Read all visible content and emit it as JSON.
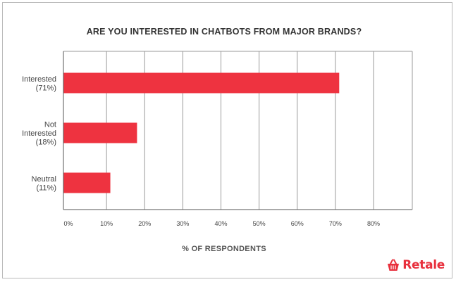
{
  "colors": {
    "bar": "#ee3340",
    "grid": "#9a9a9a",
    "axis": "#555555",
    "brand": "#e8303d"
  },
  "logo": {
    "text": "Retale",
    "icon": "basket-icon"
  },
  "chart_data": {
    "type": "bar",
    "orientation": "horizontal",
    "title": "ARE YOU INTERESTED IN CHATBOTS FROM MAJOR BRANDS?",
    "xlabel": "% OF RESPONDENTS",
    "ylabel": "",
    "categories": [
      [
        "Interested",
        "(71%)"
      ],
      [
        "Not",
        "Interested",
        "(18%)"
      ],
      [
        "Neutral",
        "(11%)"
      ]
    ],
    "values": [
      71,
      18,
      11
    ],
    "xlim": [
      0,
      90
    ],
    "xticks": [
      "0%",
      "10%",
      "20%",
      "30%",
      "40%",
      "50%",
      "60%",
      "70%",
      "80%"
    ],
    "grid": true,
    "legend": "none"
  }
}
